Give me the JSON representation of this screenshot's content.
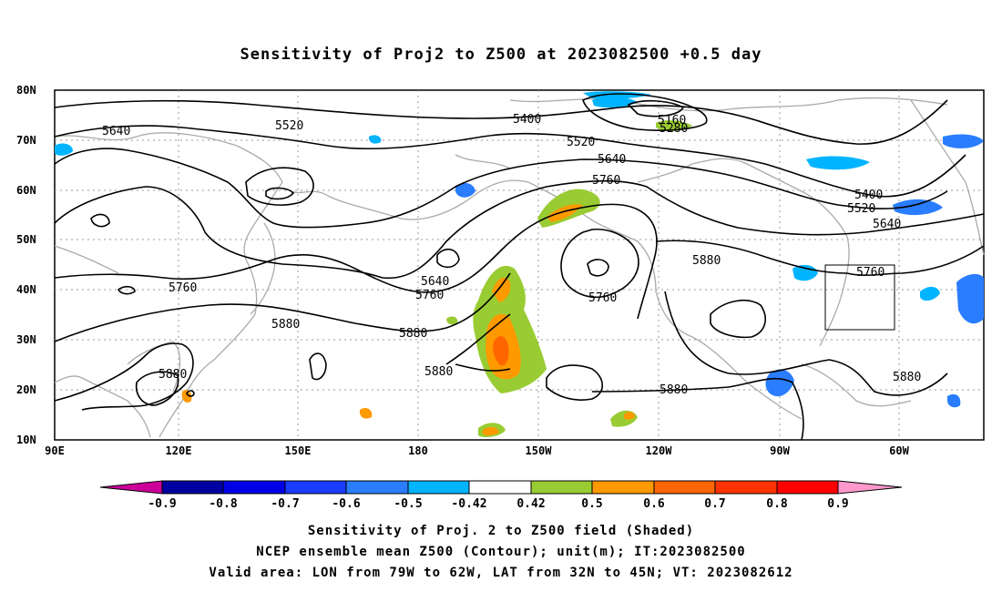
{
  "title": "Sensitivity of Proj2 to Z500 at 2023082500 +0.5 day",
  "map": {
    "lat_labels": [
      "80N",
      "70N",
      "60N",
      "50N",
      "40N",
      "30N",
      "20N",
      "10N"
    ],
    "lon_labels": [
      "90E",
      "120E",
      "150E",
      "180",
      "150W",
      "120W",
      "90W",
      "60W"
    ],
    "contour_labels": [
      "5640",
      "5520",
      "5400",
      "5160",
      "5280",
      "5520",
      "5640",
      "5760",
      "5400",
      "5520",
      "5640",
      "5760",
      "5880",
      "5640",
      "5760",
      "5760",
      "5880",
      "5880",
      "5880",
      "5880",
      "5760",
      "5880",
      "5880"
    ],
    "valid_box": {
      "lon_from": "79W",
      "lon_to": "62W",
      "lat_from": "32N",
      "lat_to": "45N"
    }
  },
  "colorbar": {
    "labels": [
      "-0.9",
      "-0.8",
      "-0.7",
      "-0.6",
      "-0.5",
      "-0.42",
      "0.42",
      "0.5",
      "0.6",
      "0.7",
      "0.8",
      "0.9"
    ],
    "colors": [
      "#cc0099",
      "#0000a0",
      "#0000e6",
      "#1a3cff",
      "#2a7dff",
      "#00b4ff",
      "#ffffff",
      "#99cc33",
      "#ff9900",
      "#ff6600",
      "#ff3300",
      "#ff0000",
      "#ff99cc"
    ]
  },
  "footer": {
    "line1": "Sensitivity of Proj. 2 to Z500 field (Shaded)",
    "line2": "NCEP ensemble mean Z500 (Contour); unit(m); IT:2023082500",
    "line3": "Valid area: LON from 79W to 62W, LAT from 32N to 45N; VT: 2023082612"
  }
}
